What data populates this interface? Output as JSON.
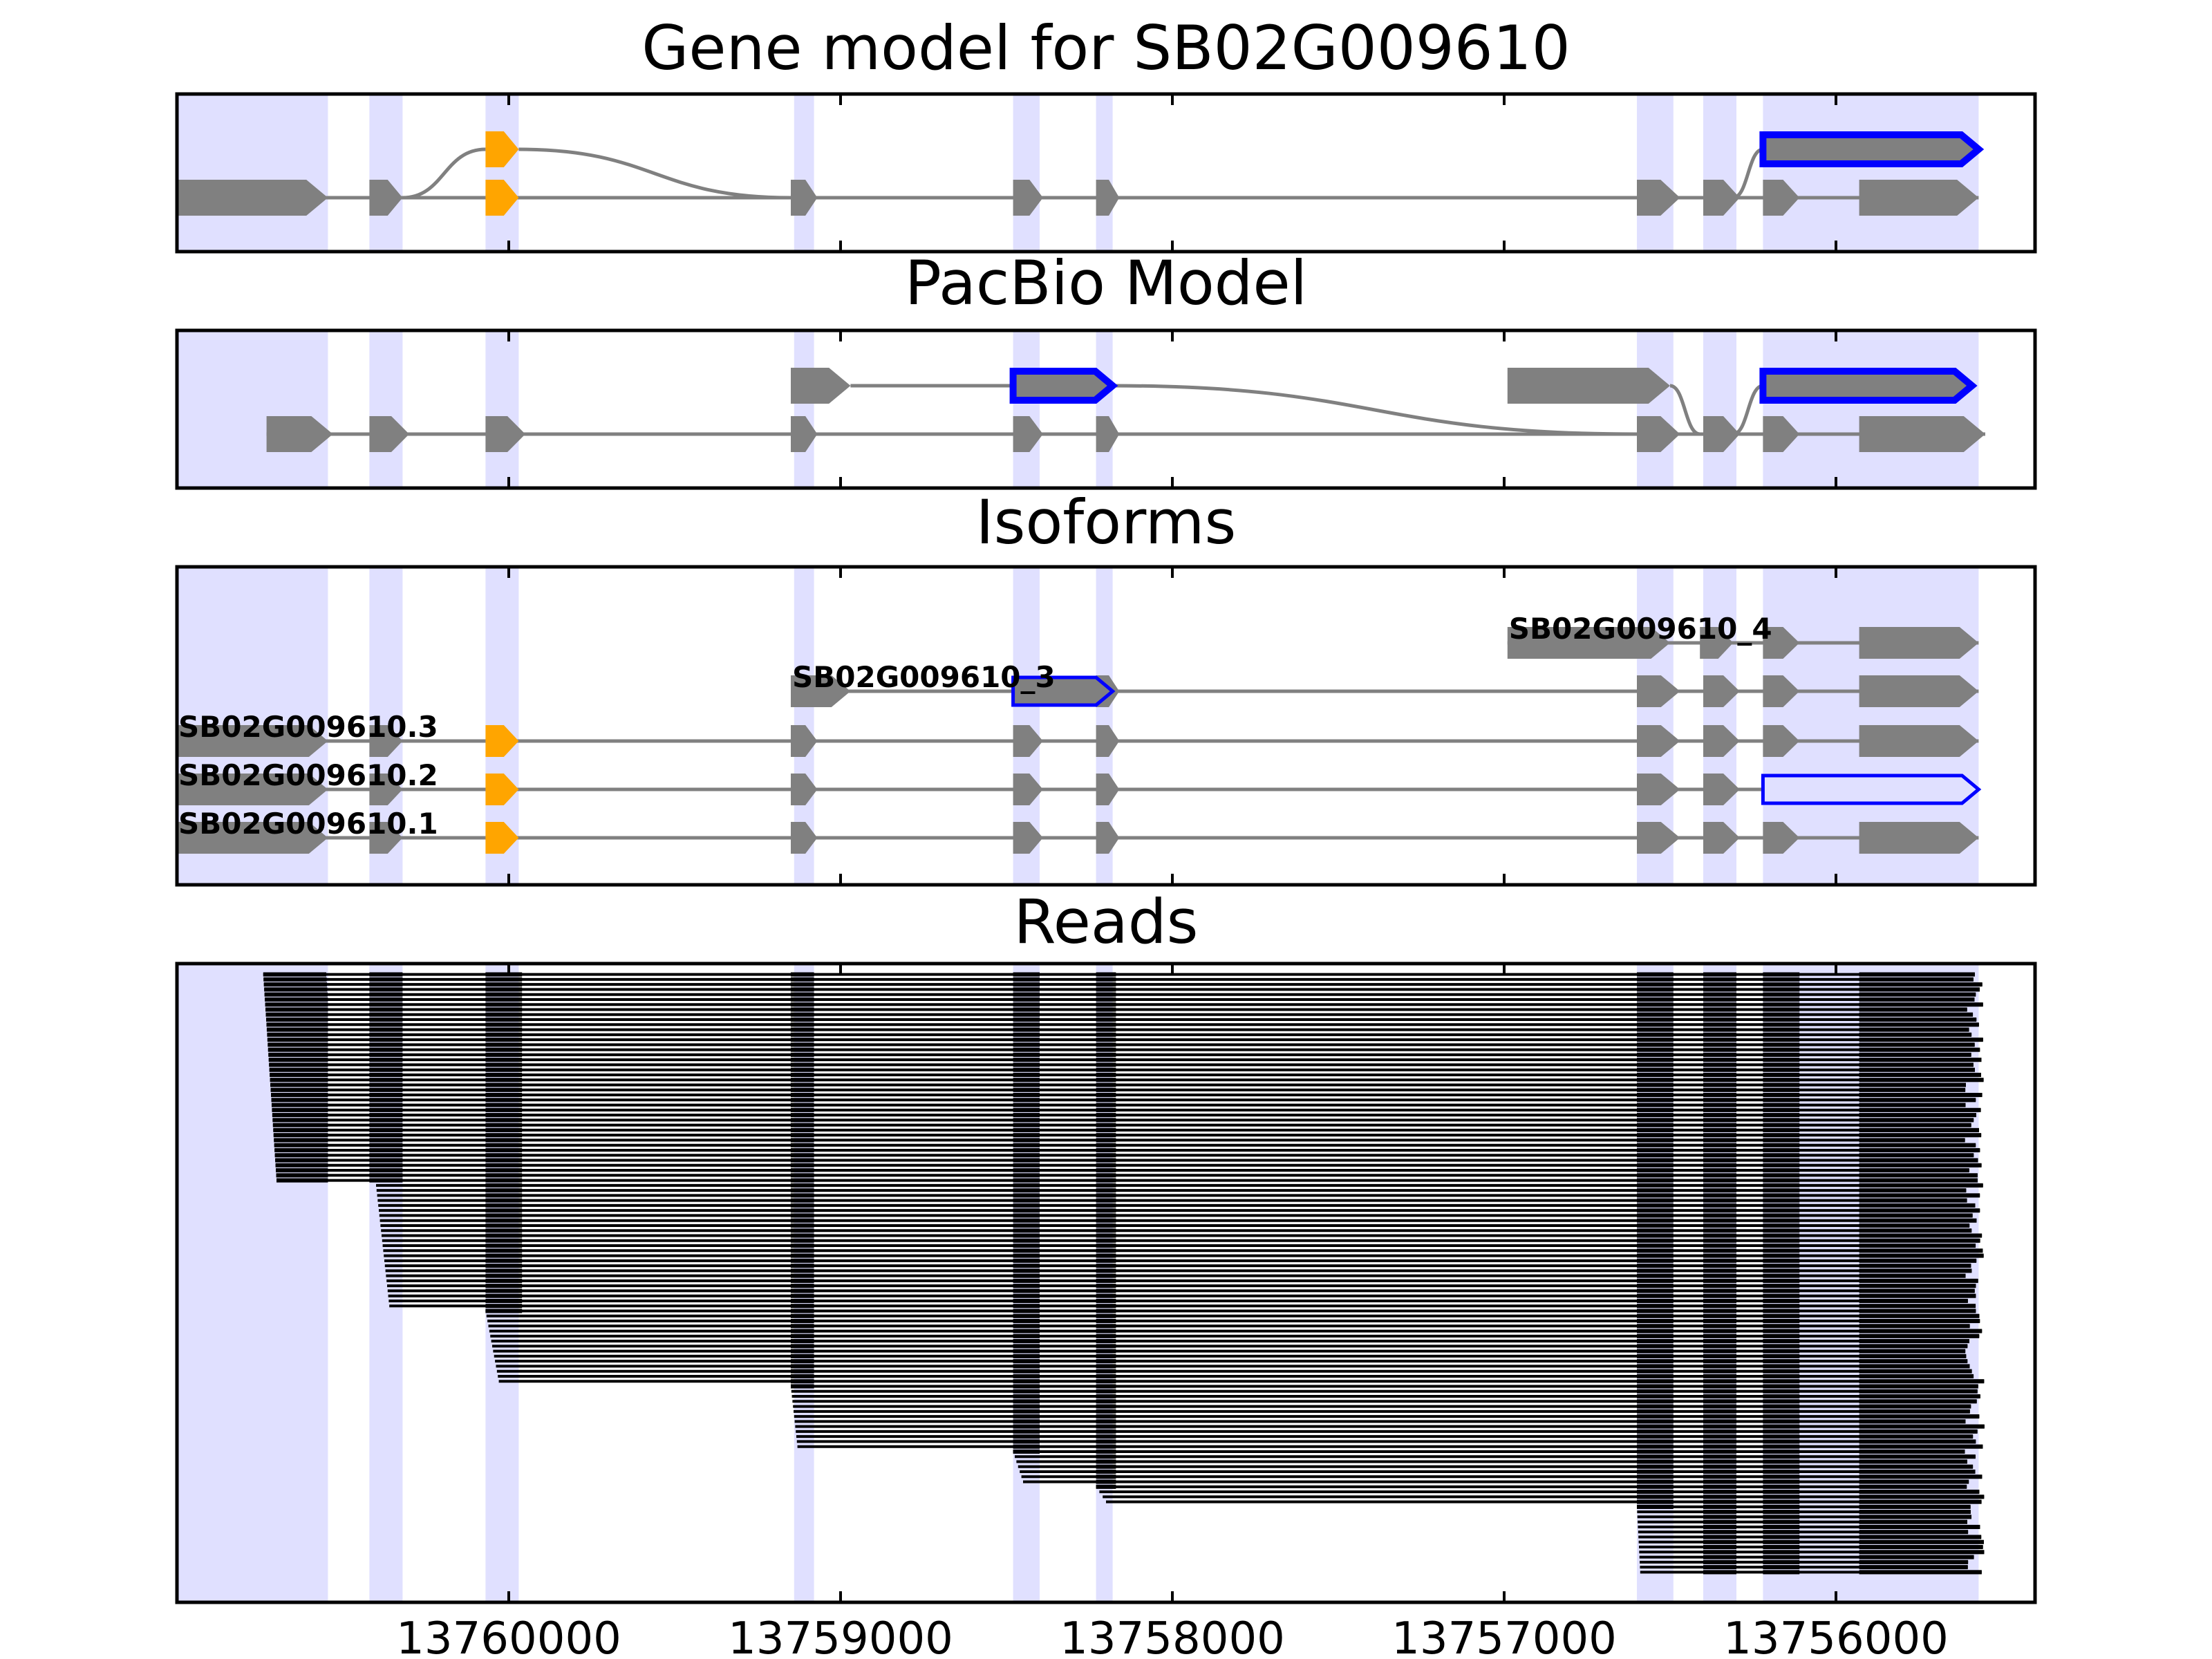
{
  "chart_data": {
    "type": "gene-structure",
    "x_axis": {
      "reversed": true,
      "range": [
        13761000,
        13755400
      ],
      "ticks": [
        "13760000",
        "13759000",
        "13758000",
        "13757000",
        "13756000"
      ]
    },
    "highlight_regions": [
      [
        13761000,
        13760545
      ],
      [
        13760420,
        13760320
      ],
      [
        13760070,
        13759970
      ],
      [
        13759140,
        13759080
      ],
      [
        13758480,
        13758400
      ],
      [
        13758230,
        13758180
      ],
      [
        13756600,
        13756490
      ],
      [
        13756400,
        13756300
      ],
      [
        13756220,
        13755570
      ]
    ],
    "colors": {
      "highlight": "#e0e0ff",
      "exon": "#808080",
      "intron": "#808080",
      "alt_exon": "#ffa500",
      "selected_outline": "#0000ff",
      "read": "#000000"
    },
    "panels": [
      {
        "title": "Gene model for SB02G009610",
        "tracks": [
          {
            "exons": [
              [
                13760070,
                13759970
              ]
            ],
            "highlight_exons": [
              0
            ],
            "connectors": [
              [
                13759970,
                13759150
              ]
            ]
          },
          {
            "outline_exons": [
              [
                13756220,
                13755570
              ]
            ],
            "connectors_in": [
              [
                13756310,
                13756220
              ]
            ]
          },
          {
            "exons": [
              [
                13761000,
                13760545
              ],
              [
                13760420,
                13760320
              ],
              [
                13760070,
                13759970
              ],
              [
                13759150,
                13759070
              ],
              [
                13758480,
                13758390
              ],
              [
                13758230,
                13758160
              ],
              [
                13756600,
                13756470
              ],
              [
                13756400,
                13756290
              ],
              [
                13756220,
                13756110
              ],
              [
                13755930,
                13755570
              ]
            ],
            "highlight_exons": [
              2
            ]
          }
        ]
      },
      {
        "title": "PacBio Model",
        "tracks": [
          {
            "exons": [
              [
                13759150,
                13758970
              ],
              [
                13756990,
                13756500
              ]
            ],
            "outline_exons": [
              [
                13758480,
                13758180
              ]
            ],
            "connectors": [
              [
                13758970,
                13758480
              ],
              [
                13758180,
                13756600
              ],
              [
                13756500,
                13756310
              ]
            ]
          },
          {
            "outline_exons": [
              [
                13756220,
                13755590
              ]
            ],
            "connectors_in": [
              [
                13756310,
                13756220
              ]
            ]
          },
          {
            "exons": [
              [
                13760730,
                13760530
              ],
              [
                13760420,
                13760300
              ],
              [
                13760070,
                13759950
              ],
              [
                13759150,
                13759070
              ],
              [
                13758480,
                13758390
              ],
              [
                13758230,
                13758160
              ],
              [
                13756600,
                13756470
              ],
              [
                13756400,
                13756290
              ],
              [
                13756220,
                13756110
              ],
              [
                13755930,
                13755550
              ]
            ]
          }
        ]
      },
      {
        "title": "Isoforms",
        "isoforms": [
          {
            "label": "SB02G009610_4",
            "exons": [
              [
                13756990,
                13756500
              ],
              [
                13756410,
                13756310
              ],
              [
                13756220,
                13756110
              ],
              [
                13755930,
                13755570
              ]
            ]
          },
          {
            "label": "SB02G009610_3",
            "exons": [
              [
                13759150,
                13758970
              ],
              [
                13758230,
                13758160
              ],
              [
                13756600,
                13756470
              ],
              [
                13756400,
                13756290
              ],
              [
                13756220,
                13756110
              ],
              [
                13755930,
                13755570
              ]
            ],
            "outline_exons": [
              [
                13758480,
                13758180
              ]
            ]
          },
          {
            "label": "SB02G009610.3",
            "exons": [
              [
                13761000,
                13760545
              ],
              [
                13760420,
                13760320
              ],
              [
                13759150,
                13759070
              ],
              [
                13758480,
                13758390
              ],
              [
                13758230,
                13758160
              ],
              [
                13756600,
                13756470
              ],
              [
                13756400,
                13756290
              ],
              [
                13756220,
                13756110
              ],
              [
                13755930,
                13755570
              ]
            ],
            "alt_exons": [
              [
                13760070,
                13759970
              ]
            ]
          },
          {
            "label": "SB02G009610.2",
            "exons": [
              [
                13761000,
                13760545
              ],
              [
                13760420,
                13760320
              ],
              [
                13759150,
                13759070
              ],
              [
                13758480,
                13758390
              ],
              [
                13758230,
                13758160
              ],
              [
                13756600,
                13756470
              ],
              [
                13756400,
                13756290
              ]
            ],
            "alt_exons": [
              [
                13760070,
                13759970
              ]
            ],
            "outline_exons": [
              [
                13756220,
                13755570
              ]
            ]
          },
          {
            "label": "SB02G009610.1",
            "exons": [
              [
                13761000,
                13760545
              ],
              [
                13760420,
                13760320
              ],
              [
                13759150,
                13759070
              ],
              [
                13758480,
                13758390
              ],
              [
                13758230,
                13758160
              ],
              [
                13756600,
                13756470
              ],
              [
                13756400,
                13756290
              ],
              [
                13756220,
                13756110
              ],
              [
                13755930,
                13755570
              ]
            ],
            "alt_exons": [
              [
                13760070,
                13759970
              ]
            ]
          }
        ]
      },
      {
        "title": "Reads",
        "reads": {
          "count": 120,
          "stacked_exons": [
            [
              13760420,
              13760320
            ],
            [
              13760070,
              13759960
            ],
            [
              13759150,
              13759080
            ],
            [
              13758480,
              13758400
            ],
            [
              13758230,
              13758170
            ],
            [
              13756600,
              13756490
            ],
            [
              13756400,
              13756300
            ],
            [
              13756220,
              13756110
            ],
            [
              13755930,
              13755570
            ]
          ],
          "start_groups": [
            {
              "start_range": [
                13760740,
                13760700
              ],
              "count": 42
            },
            {
              "start_range": [
                13760400,
                13760360
              ],
              "count": 25
            },
            {
              "start_range": [
                13760070,
                13760030
              ],
              "count": 15
            },
            {
              "start_range": [
                13759150,
                13759130
              ],
              "count": 13
            },
            {
              "start_range": [
                13758480,
                13758450
              ],
              "count": 7
            },
            {
              "start_range": [
                13758230,
                13758200
              ],
              "count": 4
            },
            {
              "start_range": [
                13756600,
                13756590
              ],
              "count": 14
            }
          ],
          "end_range": [
            13755930,
            13755570
          ]
        }
      }
    ]
  }
}
